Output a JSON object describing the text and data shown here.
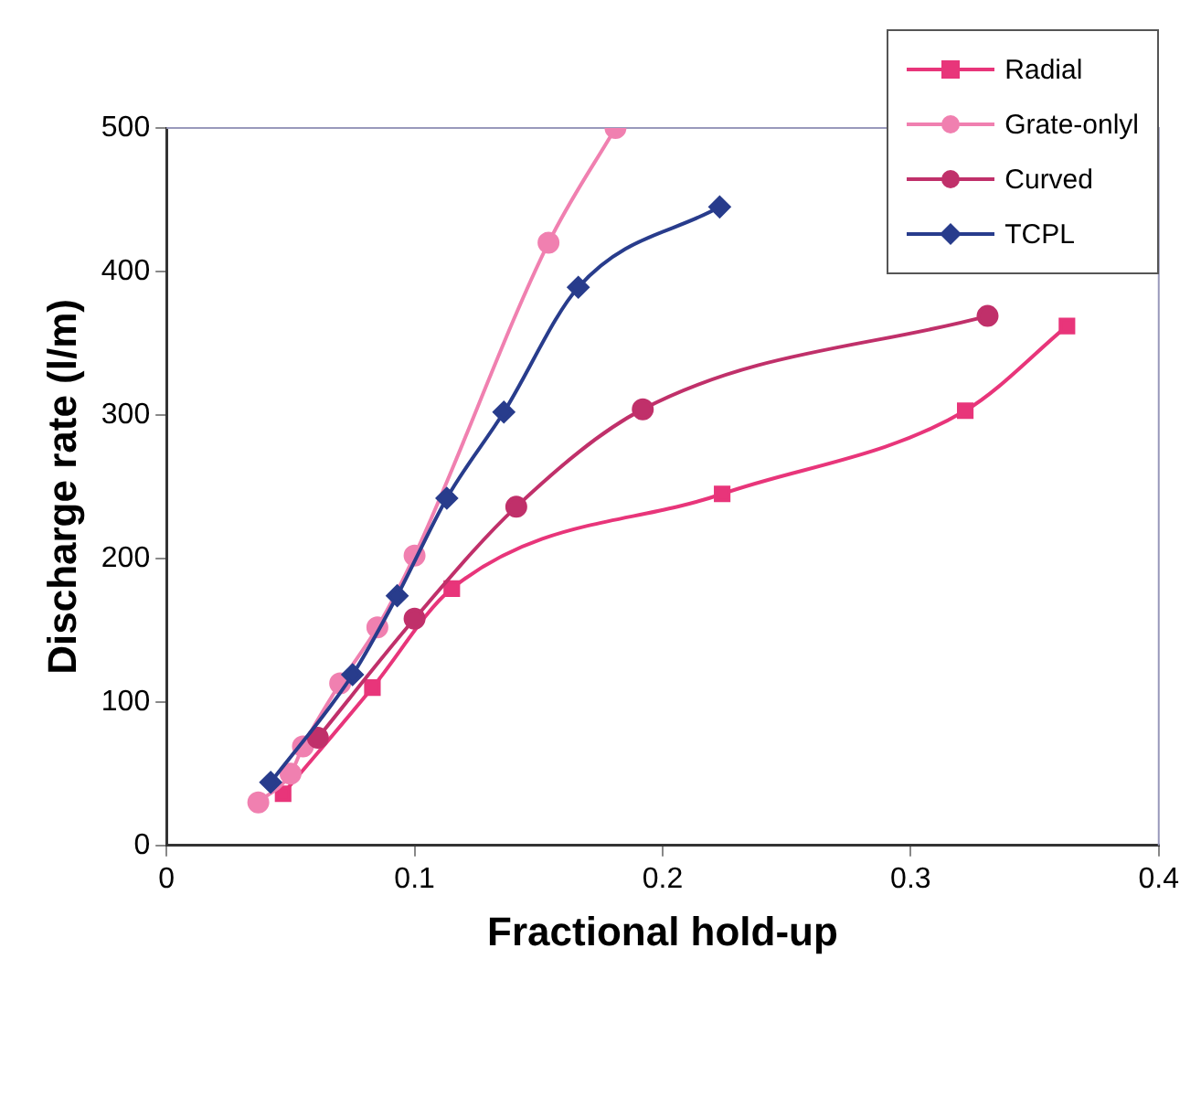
{
  "chart_data": {
    "type": "line",
    "xlabel": "Fractional hold-up",
    "ylabel": "Discharge rate (l/m)",
    "xlim": [
      0,
      0.4
    ],
    "xticks": [
      0,
      0.1,
      0.2,
      0.3,
      0.4
    ],
    "ylim": [
      0,
      500
    ],
    "yticks": [
      0,
      100,
      200,
      300,
      400,
      500
    ],
    "grid": false,
    "legend": "top right",
    "line_style": "solid",
    "series": [
      {
        "name": "Radial",
        "color": "#e8357a",
        "marker": "square",
        "x": [
          0.047,
          0.083,
          0.115,
          0.224,
          0.322,
          0.363
        ],
        "values": [
          36,
          110,
          179,
          245,
          303,
          362
        ]
      },
      {
        "name": "Grate-onlyl",
        "color": "#f080b0",
        "marker": "circle",
        "x": [
          0.037,
          0.05,
          0.055,
          0.07,
          0.085,
          0.1,
          0.154,
          0.181
        ],
        "values": [
          30,
          50,
          69,
          113,
          152,
          202,
          420,
          500
        ]
      },
      {
        "name": "Curved",
        "color": "#c0306a",
        "marker": "circle",
        "x": [
          0.061,
          0.1,
          0.141,
          0.192,
          0.331
        ],
        "values": [
          75,
          158,
          236,
          304,
          369
        ]
      },
      {
        "name": "TCPL",
        "color": "#283c8c",
        "marker": "diamond",
        "x": [
          0.042,
          0.075,
          0.093,
          0.113,
          0.136,
          0.166,
          0.223
        ],
        "values": [
          44,
          119,
          174,
          242,
          302,
          389,
          445
        ]
      }
    ]
  }
}
